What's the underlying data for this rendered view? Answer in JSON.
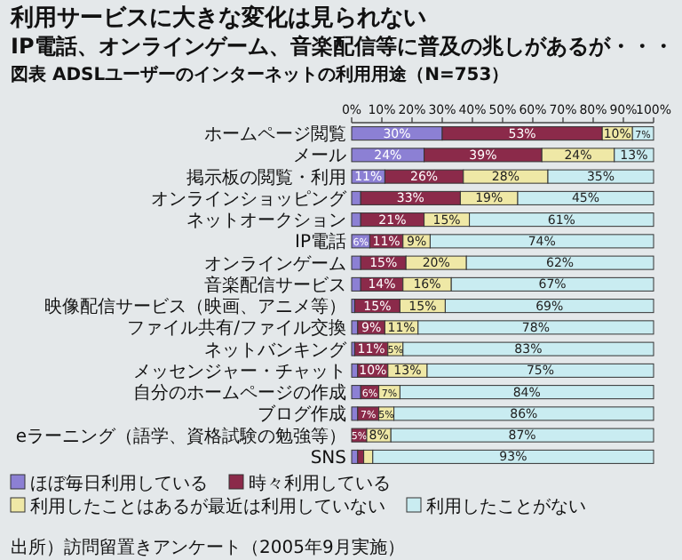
{
  "chart_data": {
    "type": "bar",
    "orientation": "horizontal",
    "stacked": true,
    "title": "利用サービスに大きな変化は見られない",
    "subtitle": "IP電話、オンラインゲーム、音楽配信等に普及の兆しがあるが・・・",
    "annotations": [
      "図表 ADSLユーザーのインターネットの利用用途（N=753）",
      "出所）訪問留置きアンケート（2005年9月実施）"
    ],
    "categories": [
      "ホームページ閲覧",
      "メール",
      "掲示板の閲覧・利用",
      "オンラインショッピング",
      "ネットオークション",
      "IP電話",
      "オンラインゲーム",
      "音楽配信サービス",
      "映像配信サービス（映画、アニメ等）",
      "ファイル共有/ファイル交換",
      "ネットバンキング",
      "メッセンジャー・チャット",
      "自分のホームページの作成",
      "ブログ作成",
      "eラーニング（語学、資格試験の勉強等）",
      "SNS"
    ],
    "series": [
      {
        "name": "ほぼ毎日利用している",
        "color": "#8c80d4",
        "values": [
          30,
          24,
          11,
          3,
          3,
          6,
          3,
          3,
          1,
          2,
          1,
          2,
          3,
          2,
          0,
          2
        ],
        "value_labels": [
          "30%",
          "24%",
          "11%",
          null,
          null,
          "6%",
          null,
          null,
          null,
          null,
          null,
          null,
          null,
          null,
          null,
          null
        ]
      },
      {
        "name": "時々利用している",
        "color": "#8b2a4a",
        "values": [
          53,
          39,
          26,
          33,
          21,
          11,
          15,
          14,
          15,
          9,
          11,
          10,
          6,
          7,
          5,
          2
        ],
        "value_labels": [
          "53%",
          "39%",
          "26%",
          "33%",
          "21%",
          "11%",
          "15%",
          "14%",
          "15%",
          "9%",
          "11%",
          "10%",
          "6%",
          "7%",
          "5%",
          null
        ]
      },
      {
        "name": "利用したことはあるが最近は利用していない",
        "color": "#efe8a6",
        "values": [
          10,
          24,
          28,
          19,
          15,
          9,
          20,
          16,
          15,
          11,
          5,
          13,
          7,
          5,
          8,
          3
        ],
        "value_labels": [
          "10%",
          "24%",
          "28%",
          "19%",
          "15%",
          "9%",
          "20%",
          "16%",
          "15%",
          "11%",
          "5%",
          "13%",
          "7%",
          "5%",
          "8%",
          null
        ]
      },
      {
        "name": "利用したことがない",
        "color": "#c9ecf1",
        "values": [
          7,
          13,
          35,
          45,
          61,
          74,
          62,
          67,
          69,
          78,
          83,
          75,
          84,
          86,
          87,
          93
        ],
        "value_labels": [
          "7%",
          "13%",
          "35%",
          "45%",
          "61%",
          "74%",
          "62%",
          "67%",
          "69%",
          "78%",
          "83%",
          "75%",
          "84%",
          "86%",
          "87%",
          "93%"
        ]
      }
    ],
    "xlim": [
      0,
      100
    ],
    "xticks": [
      {
        "value": 0,
        "label": "0%"
      },
      {
        "value": 10,
        "label": "10%"
      },
      {
        "value": 20,
        "label": "20%"
      },
      {
        "value": 30,
        "label": "30%"
      },
      {
        "value": 40,
        "label": "40%"
      },
      {
        "value": 50,
        "label": "50%"
      },
      {
        "value": 60,
        "label": "60%"
      },
      {
        "value": 70,
        "label": "70%"
      },
      {
        "value": 80,
        "label": "80%"
      },
      {
        "value": 90,
        "label": "90%"
      },
      {
        "value": 100,
        "label": "100%"
      }
    ],
    "legend": "bottom"
  }
}
